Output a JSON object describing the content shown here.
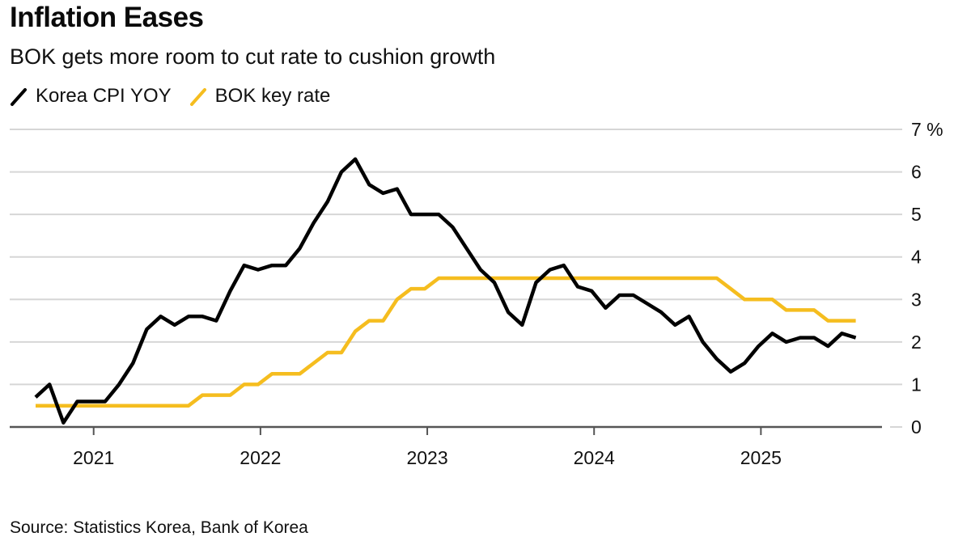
{
  "header": {
    "title": "Inflation Eases",
    "subtitle": "BOK gets more room to cut rate to cushion growth"
  },
  "legend": [
    {
      "label": "Korea CPI YOY",
      "color": "#000000"
    },
    {
      "label": "BOK key rate",
      "color": "#f5bd1f"
    }
  ],
  "footer": {
    "source": "Source: Statistics Korea, Bank of Korea"
  },
  "chart_data": {
    "type": "line",
    "title": "Inflation Eases",
    "subtitle": "BOK gets more room to cut rate to cushion growth",
    "xlabel": "",
    "ylabel": "%",
    "ylim": [
      0,
      7
    ],
    "yticks": [
      "0",
      "1",
      "2",
      "3",
      "4",
      "5",
      "6",
      "7 %"
    ],
    "xticks": [
      "2021",
      "2022",
      "2023",
      "2024",
      "2025"
    ],
    "grid": true,
    "legend_position": "top-left",
    "x": [
      "2020-08",
      "2020-09",
      "2020-10",
      "2020-11",
      "2020-12",
      "2021-01",
      "2021-02",
      "2021-03",
      "2021-04",
      "2021-05",
      "2021-06",
      "2021-07",
      "2021-08",
      "2021-09",
      "2021-10",
      "2021-11",
      "2021-12",
      "2022-01",
      "2022-02",
      "2022-03",
      "2022-04",
      "2022-05",
      "2022-06",
      "2022-07",
      "2022-08",
      "2022-09",
      "2022-10",
      "2022-11",
      "2022-12",
      "2023-01",
      "2023-02",
      "2023-03",
      "2023-04",
      "2023-05",
      "2023-06",
      "2023-07",
      "2023-08",
      "2023-09",
      "2023-10",
      "2023-11",
      "2023-12",
      "2024-01",
      "2024-02",
      "2024-03",
      "2024-04",
      "2024-05",
      "2024-06",
      "2024-07",
      "2024-08",
      "2024-09",
      "2024-10",
      "2024-11",
      "2024-12",
      "2025-01",
      "2025-02",
      "2025-03",
      "2025-04",
      "2025-05",
      "2025-06",
      "2025-07"
    ],
    "series": [
      {
        "name": "Korea CPI YOY",
        "color": "#000000",
        "values": [
          0.7,
          1.0,
          0.1,
          0.6,
          0.6,
          0.6,
          1.0,
          1.5,
          2.3,
          2.6,
          2.4,
          2.6,
          2.6,
          2.5,
          3.2,
          3.8,
          3.7,
          3.8,
          3.8,
          4.2,
          4.8,
          5.3,
          6.0,
          6.3,
          5.7,
          5.5,
          5.6,
          5.0,
          5.0,
          5.0,
          4.7,
          4.2,
          3.7,
          3.4,
          2.7,
          2.4,
          3.4,
          3.7,
          3.8,
          3.3,
          3.2,
          2.8,
          3.1,
          3.1,
          2.9,
          2.7,
          2.4,
          2.6,
          2.0,
          1.6,
          1.3,
          1.5,
          1.9,
          2.2,
          2.0,
          2.1,
          2.1,
          1.9,
          2.2,
          2.1
        ]
      },
      {
        "name": "BOK key rate",
        "color": "#f5bd1f",
        "values": [
          0.5,
          0.5,
          0.5,
          0.5,
          0.5,
          0.5,
          0.5,
          0.5,
          0.5,
          0.5,
          0.5,
          0.5,
          0.75,
          0.75,
          0.75,
          1.0,
          1.0,
          1.25,
          1.25,
          1.25,
          1.5,
          1.75,
          1.75,
          2.25,
          2.5,
          2.5,
          3.0,
          3.25,
          3.25,
          3.5,
          3.5,
          3.5,
          3.5,
          3.5,
          3.5,
          3.5,
          3.5,
          3.5,
          3.5,
          3.5,
          3.5,
          3.5,
          3.5,
          3.5,
          3.5,
          3.5,
          3.5,
          3.5,
          3.5,
          3.5,
          3.25,
          3.0,
          3.0,
          3.0,
          2.75,
          2.75,
          2.75,
          2.5,
          2.5,
          2.5
        ]
      }
    ]
  }
}
